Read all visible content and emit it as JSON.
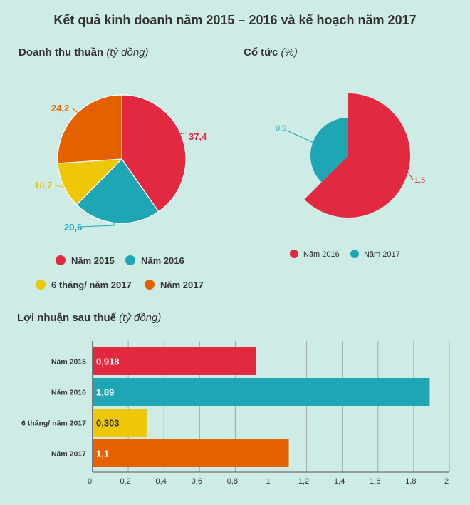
{
  "title": "Kết quả kinh doanh năm 2015 – 2016 và kế hoạch năm 2017",
  "colors": {
    "red": "#e2293f",
    "teal": "#1fa6b4",
    "yellow": "#eec707",
    "orange": "#e56100",
    "background": "#cdece6",
    "grid": "#9fa9a6"
  },
  "revenue": {
    "title": "Doanh thu thuần",
    "unit": "(tỷ đồng)"
  },
  "dividend": {
    "title": "Cổ tức",
    "unit": "(%)"
  },
  "profit": {
    "title": "Lợi nhuận sau thuế",
    "unit": "(tỷ đồng)"
  },
  "chart_data": [
    {
      "type": "pie",
      "title": "Doanh thu thuần (tỷ đồng)",
      "categories": [
        "Năm 2015",
        "Năm 2016",
        "6 tháng/ năm 2017",
        "Năm 2017"
      ],
      "values": [
        37.4,
        20.6,
        10.7,
        24.2
      ],
      "labels": [
        "37,4",
        "20,6",
        "10,7",
        "24,2"
      ],
      "colors": [
        "#e2293f",
        "#1fa6b4",
        "#eec707",
        "#e56100"
      ],
      "legend": [
        "Năm 2015",
        "Năm 2016",
        "6 tháng/ năm 2017",
        "Năm 2017"
      ]
    },
    {
      "type": "pie",
      "title": "Cổ tức (%)",
      "categories": [
        "Năm 2016",
        "Năm 2017"
      ],
      "values": [
        1.5,
        0.9
      ],
      "labels": [
        "1,5",
        "0,9"
      ],
      "colors": [
        "#e2293f",
        "#1fa6b4"
      ],
      "legend": [
        "Năm 2016",
        "Năm 2017"
      ]
    },
    {
      "type": "bar",
      "orientation": "horizontal",
      "title": "Lợi nhuận sau thuế (tỷ đồng)",
      "categories": [
        "Năm 2015",
        "Năm 2016",
        "6 tháng/ năm 2017",
        "Năm 2017"
      ],
      "values": [
        0.918,
        1.89,
        0.303,
        1.1
      ],
      "labels": [
        "0,918",
        "1,89",
        "0,303",
        "1,1"
      ],
      "colors": [
        "#e2293f",
        "#1fa6b4",
        "#eec707",
        "#e56100"
      ],
      "xlim": [
        0,
        2
      ],
      "xticks": [
        0,
        0.2,
        0.4,
        0.6,
        0.8,
        1,
        1.2,
        1.4,
        1.6,
        1.8,
        2
      ],
      "xtick_labels": [
        "0",
        "0,2",
        "0,4",
        "0,6",
        "0,8",
        "1",
        "1,2",
        "1,4",
        "1,6",
        "1,8",
        "2"
      ],
      "grid": true
    }
  ]
}
